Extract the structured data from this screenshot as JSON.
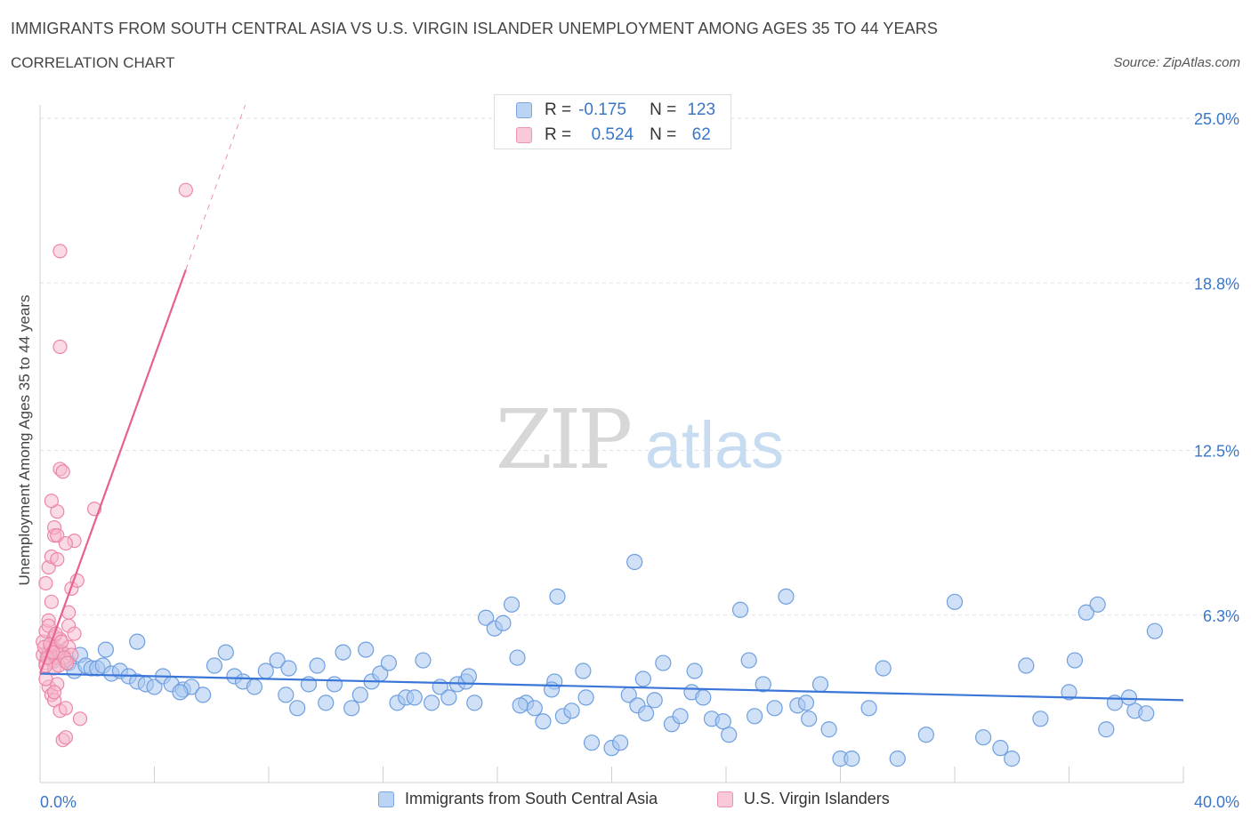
{
  "title": "IMMIGRANTS FROM SOUTH CENTRAL ASIA VS U.S. VIRGIN ISLANDER UNEMPLOYMENT AMONG AGES 35 TO 44 YEARS",
  "subtitle": "CORRELATION CHART",
  "source": "Source: ZipAtlas.com",
  "watermark": {
    "zip": "ZIP",
    "atlas": "atlas"
  },
  "colors": {
    "blue_fill": "#a9c8f0",
    "blue_stroke": "#6f9fe0",
    "blue_line": "#3a76d8",
    "pink_fill": "#f6b7cb",
    "pink_stroke": "#ec86a7",
    "pink_line": "#e8608f",
    "axis_label_blue": "#3a76c8",
    "grid": "#dde3ea"
  },
  "stats": {
    "series1": {
      "r_label": "R =",
      "r_value": "-0.175",
      "n_label": "N =",
      "n_value": "123"
    },
    "series2": {
      "r_label": "R =",
      "r_value": "0.524",
      "n_label": "N =",
      "n_value": "62"
    }
  },
  "legend": {
    "series1": "Immigrants from South Central Asia",
    "series2": "U.S. Virgin Islanders"
  },
  "chart_data": {
    "type": "scatter",
    "title": "IMMIGRANTS FROM SOUTH CENTRAL ASIA VS U.S. VIRGIN ISLANDER UNEMPLOYMENT AMONG AGES 35 TO 44 YEARS",
    "xlabel": "",
    "ylabel": "Unemployment Among Ages 35 to 44 years",
    "xlim": [
      0,
      40
    ],
    "ylim": [
      0,
      25
    ],
    "x_tick_labels": [
      "0.0%",
      "40.0%"
    ],
    "y_tick_labels": [
      "6.3%",
      "12.5%",
      "18.8%",
      "25.0%"
    ],
    "y_ticks": [
      6.3,
      12.5,
      18.8,
      25.0
    ],
    "grid": true,
    "legend_position": "bottom",
    "series": [
      {
        "name": "Immigrants from South Central Asia",
        "color": "#a9c8f0",
        "trend": {
          "x": [
            0,
            40
          ],
          "y": [
            4.1,
            3.1
          ]
        },
        "points": [
          [
            0.3,
            4.8
          ],
          [
            0.5,
            4.6
          ],
          [
            0.7,
            4.9
          ],
          [
            1.0,
            4.5
          ],
          [
            1.2,
            4.2
          ],
          [
            1.4,
            4.8
          ],
          [
            1.6,
            4.4
          ],
          [
            1.8,
            4.3
          ],
          [
            2.0,
            4.3
          ],
          [
            2.2,
            4.4
          ],
          [
            2.5,
            4.1
          ],
          [
            2.8,
            4.2
          ],
          [
            3.1,
            4.0
          ],
          [
            3.4,
            3.8
          ],
          [
            3.7,
            3.7
          ],
          [
            4.0,
            3.6
          ],
          [
            4.3,
            4.0
          ],
          [
            4.6,
            3.7
          ],
          [
            5.0,
            3.5
          ],
          [
            5.3,
            3.6
          ],
          [
            5.7,
            3.3
          ],
          [
            6.1,
            4.4
          ],
          [
            6.5,
            4.9
          ],
          [
            6.8,
            4.0
          ],
          [
            7.1,
            3.8
          ],
          [
            7.5,
            3.6
          ],
          [
            7.9,
            4.2
          ],
          [
            8.3,
            4.6
          ],
          [
            8.6,
            3.3
          ],
          [
            9.0,
            2.8
          ],
          [
            9.4,
            3.7
          ],
          [
            9.7,
            4.4
          ],
          [
            10.0,
            3.0
          ],
          [
            10.3,
            3.7
          ],
          [
            10.6,
            4.9
          ],
          [
            10.9,
            2.8
          ],
          [
            11.2,
            3.3
          ],
          [
            11.6,
            3.8
          ],
          [
            11.9,
            4.1
          ],
          [
            12.2,
            4.5
          ],
          [
            12.5,
            3.0
          ],
          [
            12.8,
            3.2
          ],
          [
            13.1,
            3.2
          ],
          [
            13.4,
            4.6
          ],
          [
            13.7,
            3.0
          ],
          [
            14.0,
            3.6
          ],
          [
            14.3,
            3.2
          ],
          [
            14.6,
            3.7
          ],
          [
            14.9,
            3.8
          ],
          [
            15.2,
            3.0
          ],
          [
            15.6,
            6.2
          ],
          [
            15.9,
            5.8
          ],
          [
            16.2,
            6.0
          ],
          [
            16.5,
            6.7
          ],
          [
            16.7,
            4.7
          ],
          [
            17.0,
            3.0
          ],
          [
            17.3,
            2.8
          ],
          [
            17.6,
            2.3
          ],
          [
            18.0,
            3.8
          ],
          [
            18.3,
            2.5
          ],
          [
            18.6,
            2.7
          ],
          [
            19.0,
            4.2
          ],
          [
            19.3,
            1.5
          ],
          [
            20.0,
            1.3
          ],
          [
            20.3,
            1.5
          ],
          [
            20.6,
            3.3
          ],
          [
            20.9,
            2.9
          ],
          [
            21.2,
            2.6
          ],
          [
            21.5,
            3.1
          ],
          [
            21.8,
            4.5
          ],
          [
            22.1,
            2.2
          ],
          [
            22.4,
            2.5
          ],
          [
            22.8,
            3.4
          ],
          [
            23.2,
            3.2
          ],
          [
            23.5,
            2.4
          ],
          [
            24.1,
            1.8
          ],
          [
            24.5,
            6.5
          ],
          [
            25.0,
            2.5
          ],
          [
            25.3,
            3.7
          ],
          [
            25.7,
            2.8
          ],
          [
            26.1,
            7.0
          ],
          [
            26.5,
            2.9
          ],
          [
            26.9,
            2.4
          ],
          [
            27.3,
            3.7
          ],
          [
            28.0,
            0.9
          ],
          [
            28.4,
            0.9
          ],
          [
            29.0,
            2.8
          ],
          [
            30.0,
            0.9
          ],
          [
            31.0,
            1.8
          ],
          [
            32.0,
            6.8
          ],
          [
            33.0,
            1.7
          ],
          [
            34.0,
            0.9
          ],
          [
            34.5,
            4.4
          ],
          [
            35.0,
            2.4
          ],
          [
            36.0,
            3.4
          ],
          [
            36.6,
            6.4
          ],
          [
            37.0,
            6.7
          ],
          [
            37.6,
            3.0
          ],
          [
            38.3,
            2.7
          ],
          [
            38.7,
            2.6
          ],
          [
            39.0,
            5.7
          ],
          [
            38.1,
            3.2
          ],
          [
            2.3,
            5.0
          ],
          [
            3.4,
            5.3
          ],
          [
            18.1,
            7.0
          ],
          [
            20.8,
            8.3
          ],
          [
            19.1,
            3.2
          ],
          [
            4.9,
            3.4
          ],
          [
            8.7,
            4.3
          ],
          [
            11.4,
            5.0
          ],
          [
            15.0,
            4.0
          ],
          [
            16.8,
            2.9
          ],
          [
            17.9,
            3.5
          ],
          [
            21.1,
            3.9
          ],
          [
            22.9,
            4.2
          ],
          [
            23.9,
            2.3
          ],
          [
            24.8,
            4.6
          ],
          [
            26.8,
            3.0
          ],
          [
            27.6,
            2.0
          ],
          [
            29.5,
            4.3
          ],
          [
            33.6,
            1.3
          ],
          [
            36.2,
            4.6
          ],
          [
            37.3,
            2.0
          ]
        ]
      },
      {
        "name": "U.S. Virgin Islanders",
        "color": "#f6b7cb",
        "trend": {
          "x": [
            0,
            5.1
          ],
          "y": [
            4.1,
            19.3
          ]
        },
        "points": [
          [
            0.1,
            4.8
          ],
          [
            0.1,
            5.3
          ],
          [
            0.2,
            4.5
          ],
          [
            0.2,
            5.7
          ],
          [
            0.3,
            4.9
          ],
          [
            0.3,
            6.1
          ],
          [
            0.4,
            5.1
          ],
          [
            0.4,
            4.6
          ],
          [
            0.5,
            5.5
          ],
          [
            0.5,
            4.3
          ],
          [
            0.6,
            5.0
          ],
          [
            0.6,
            4.7
          ],
          [
            0.7,
            5.4
          ],
          [
            0.8,
            4.9
          ],
          [
            0.9,
            4.6
          ],
          [
            1.0,
            5.1
          ],
          [
            1.1,
            4.8
          ],
          [
            0.2,
            7.5
          ],
          [
            0.3,
            8.1
          ],
          [
            0.4,
            8.5
          ],
          [
            0.5,
            9.3
          ],
          [
            0.6,
            10.2
          ],
          [
            0.7,
            11.8
          ],
          [
            0.8,
            11.7
          ],
          [
            1.1,
            7.3
          ],
          [
            1.3,
            7.6
          ],
          [
            1.0,
            6.4
          ],
          [
            1.2,
            9.1
          ],
          [
            1.9,
            10.3
          ],
          [
            0.4,
            10.6
          ],
          [
            0.6,
            8.4
          ],
          [
            0.7,
            20.0
          ],
          [
            0.7,
            16.4
          ],
          [
            5.1,
            22.3
          ],
          [
            0.3,
            3.6
          ],
          [
            0.4,
            3.3
          ],
          [
            0.5,
            3.1
          ],
          [
            0.6,
            3.7
          ],
          [
            0.7,
            2.7
          ],
          [
            0.8,
            1.6
          ],
          [
            0.9,
            1.7
          ],
          [
            1.4,
            2.4
          ],
          [
            0.2,
            4.4
          ],
          [
            0.3,
            5.9
          ],
          [
            0.4,
            6.8
          ],
          [
            0.5,
            9.6
          ],
          [
            0.6,
            9.3
          ],
          [
            0.9,
            9.0
          ],
          [
            1.0,
            5.9
          ],
          [
            1.2,
            5.6
          ],
          [
            0.15,
            5.1
          ],
          [
            0.25,
            4.7
          ],
          [
            0.35,
            5.2
          ],
          [
            0.45,
            4.9
          ],
          [
            0.55,
            5.6
          ],
          [
            0.65,
            4.4
          ],
          [
            0.75,
            5.3
          ],
          [
            0.85,
            4.7
          ],
          [
            0.95,
            4.5
          ],
          [
            0.2,
            3.9
          ],
          [
            0.5,
            3.4
          ],
          [
            0.9,
            2.8
          ]
        ]
      }
    ]
  }
}
